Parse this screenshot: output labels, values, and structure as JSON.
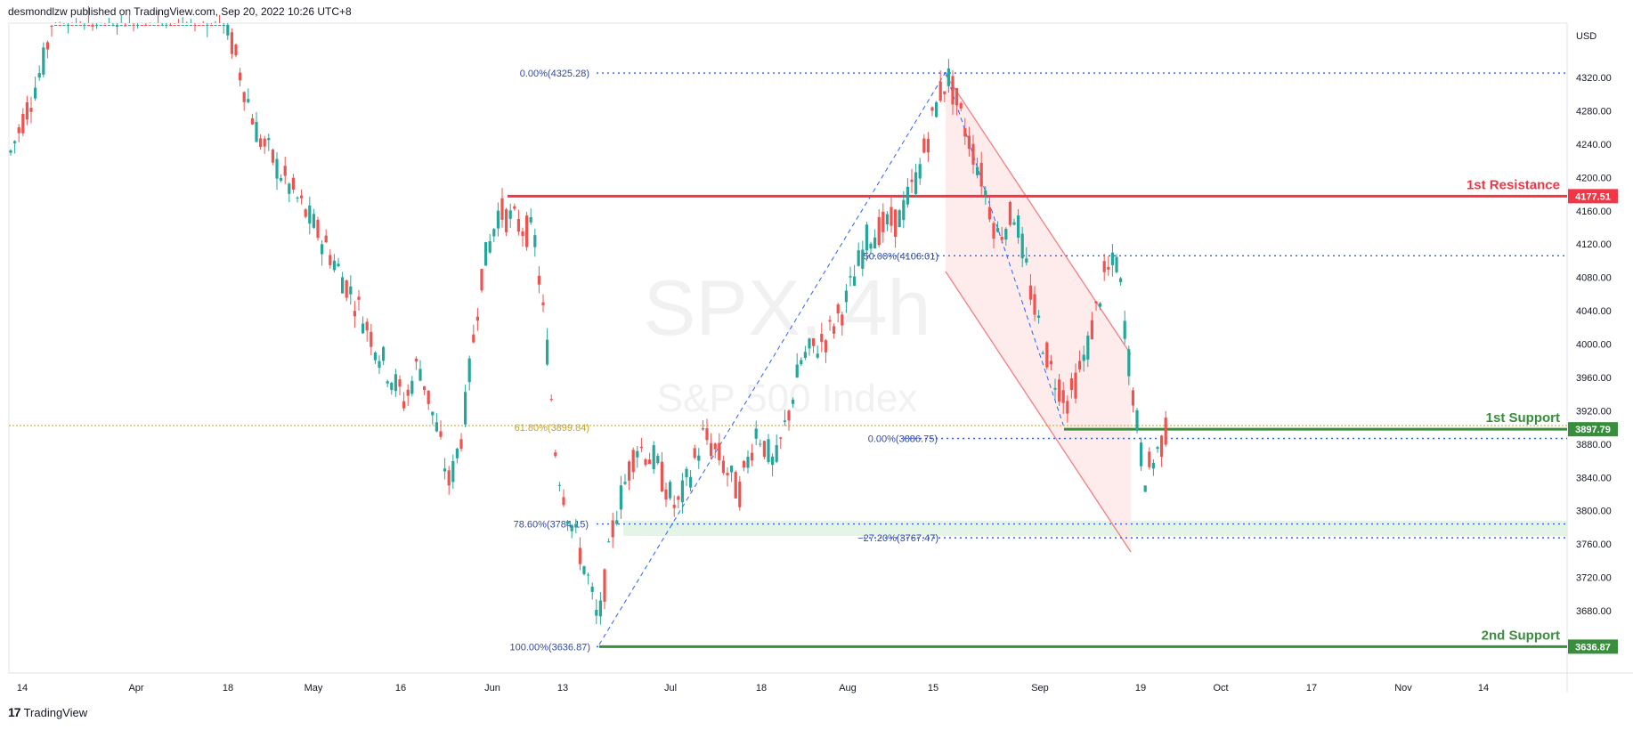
{
  "header": {
    "published": "desmondlzw published on TradingView.com, Sep 20, 2022 10:26 UTC+8"
  },
  "footer": {
    "logo_mark": "17",
    "brand": "TradingView"
  },
  "watermark": {
    "symbol": "SPX, 4h",
    "name": "S&P 500 Index"
  },
  "colors": {
    "up": "#26a69a",
    "down": "#ef5350",
    "resistance": "#f23645",
    "support": "#388e3c",
    "fib": "#2962ff",
    "fib_golden": "#c9a227",
    "channel": "#f77c80",
    "channel_fill": "#fde6e6",
    "zone": "#d8efdb"
  },
  "chart_data": {
    "type": "candlestick",
    "title": "SPX, 4h",
    "subtitle": "S&P 500 Index",
    "currency": "USD",
    "ylim": [
      3580,
      4355
    ],
    "y_ticks": [
      4320,
      4280,
      4240,
      4200,
      4160,
      4120,
      4080,
      4040,
      4000,
      3960,
      3920,
      3880,
      3840,
      3800,
      3760,
      3720,
      3680
    ],
    "y_tick_labels": [
      "4320.00",
      "4280.00",
      "4240.00",
      "4200.00",
      "4160.00",
      "4120.00",
      "4080.00",
      "4040.00",
      "4000.00",
      "3960.00",
      "3920.00",
      "3880.00",
      "3840.00",
      "3800.00",
      "3760.00",
      "3720.00",
      "3680.00"
    ],
    "x_labels": [
      "14",
      "Apr",
      "18",
      "May",
      "16",
      "Jun",
      "13",
      "Jul",
      "18",
      "Aug",
      "15",
      "Sep",
      "19",
      "Oct",
      "17",
      "Nov",
      "14"
    ],
    "horizontal_levels": [
      {
        "label": "1st Resistance",
        "value": 4177.51,
        "tag": "4177.51",
        "color": "#f23645"
      },
      {
        "label": "1st Support",
        "value": 3897.79,
        "tag": "3897.79",
        "color": "#388e3c"
      },
      {
        "label": "2nd Support",
        "value": 3636.87,
        "tag": "3636.87",
        "color": "#388e3c"
      }
    ],
    "fib_labels": [
      {
        "text": "0.00%(4325.28)",
        "value": 4325.28
      },
      {
        "text": "50.00%(4106.01)",
        "value": 4106.01
      },
      {
        "text": "61.80%(3899.84)",
        "value": 3899.84
      },
      {
        "text": "0.00%(3886.75)",
        "value": 3886.75
      },
      {
        "text": "78.60%(3784.15)",
        "value": 3784.15
      },
      {
        "text": "−27.20%(3767.47)",
        "value": 3767.47
      },
      {
        "text": "100.00%(3636.87)",
        "value": 3636.87
      }
    ]
  }
}
